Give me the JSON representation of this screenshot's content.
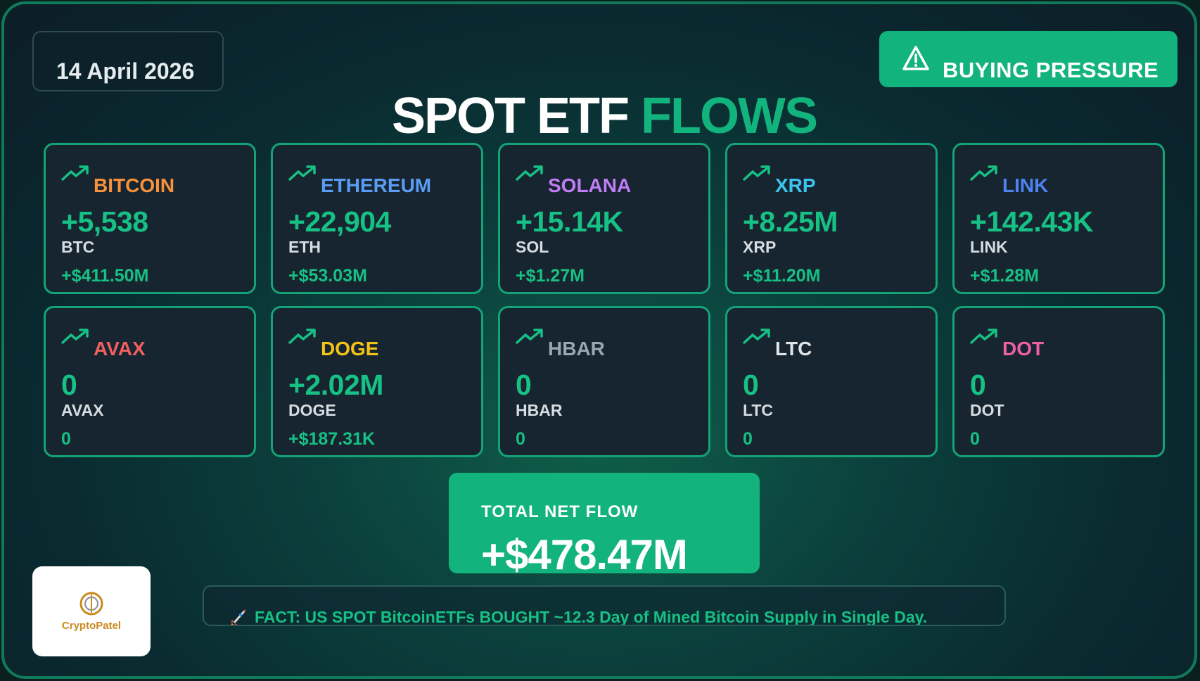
{
  "date": "14 April 2026",
  "status_badge": {
    "label": "BUYING PRESSURE",
    "icon": "warning-triangle-icon"
  },
  "title": {
    "part1": "SPOT ETF",
    "part2": "FLOWS"
  },
  "colors": {
    "accent_green": "#12b37c",
    "value_green": "#17c084",
    "card_bg": "#16252f",
    "card_border": "#14a376"
  },
  "assets": [
    {
      "name": "BITCOIN",
      "name_color": "#f7913a",
      "amount": "+5,538",
      "ticker": "BTC",
      "usd": "+$411.50M",
      "icon": "trending-up-icon"
    },
    {
      "name": "ETHEREUM",
      "name_color": "#5b9cf4",
      "amount": "+22,904",
      "ticker": "ETH",
      "usd": "+$53.03M",
      "icon": "trending-up-icon"
    },
    {
      "name": "SOLANA",
      "name_color": "#c17df5",
      "amount": "+15.14K",
      "ticker": "SOL",
      "usd": "+$1.27M",
      "icon": "trending-up-icon"
    },
    {
      "name": "XRP",
      "name_color": "#3cc4ef",
      "amount": "+8.25M",
      "ticker": "XRP",
      "usd": "+$11.20M",
      "icon": "trending-up-icon"
    },
    {
      "name": "LINK",
      "name_color": "#4d82f0",
      "amount": "+142.43K",
      "ticker": "LINK",
      "usd": "+$1.28M",
      "icon": "trending-up-icon"
    },
    {
      "name": "AVAX",
      "name_color": "#f0605f",
      "amount": "0",
      "ticker": "AVAX",
      "usd": "0",
      "icon": "trending-up-icon"
    },
    {
      "name": "DOGE",
      "name_color": "#f3c318",
      "amount": "+2.02M",
      "ticker": "DOGE",
      "usd": "+$187.31K",
      "icon": "trending-up-icon"
    },
    {
      "name": "HBAR",
      "name_color": "#9aa6b0",
      "amount": "0",
      "ticker": "HBAR",
      "usd": "0",
      "icon": "trending-up-icon"
    },
    {
      "name": "LTC",
      "name_color": "#dfe4e8",
      "amount": "0",
      "ticker": "LTC",
      "usd": "0",
      "icon": "trending-up-icon"
    },
    {
      "name": "DOT",
      "name_color": "#ef5fa6",
      "amount": "0",
      "ticker": "DOT",
      "usd": "0",
      "icon": "trending-up-icon"
    }
  ],
  "total": {
    "label": "TOTAL NET FLOW",
    "value": "+$478.47M"
  },
  "fact": {
    "icon": "rocket-icon",
    "text": "FACT: US SPOT BitcoinETFs BOUGHT ~12.3 Day of Mined Bitcoin Supply in Single Day."
  },
  "logo": {
    "text": "CryptoPatel"
  }
}
